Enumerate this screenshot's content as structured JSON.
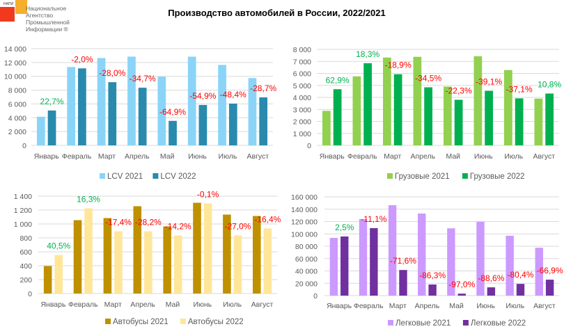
{
  "header": {
    "title": "Производство автомобилей в России, 2022/2021",
    "logo_abbr": "НАПИ",
    "logo_text": "Национальное\nАгентство\nПромышленной\nИнформации ®"
  },
  "colors": {
    "positive": "#00b050",
    "negative": "#ff0000",
    "grid": "#d9d9d9",
    "axis_text": "#595959"
  },
  "chart_data": [
    {
      "type": "bar",
      "title": "",
      "categories": [
        "Январь",
        "Февраль",
        "Март",
        "Апрель",
        "Май",
        "Июнь",
        "Июль",
        "Август"
      ],
      "yticks": [
        "0",
        "2 000",
        "4 000",
        "6 000",
        "8 000",
        "10 000",
        "12 000",
        "14 000"
      ],
      "ylim": [
        0,
        14000
      ],
      "legend_position": "bottom",
      "series": [
        {
          "name": "LCV 2021",
          "color": "#8ad4f8",
          "values": [
            4150,
            11350,
            12650,
            12850,
            9950,
            12850,
            11650,
            9750
          ]
        },
        {
          "name": "LCV 2022",
          "color": "#2a8aae",
          "values": [
            5050,
            11150,
            9150,
            8350,
            3550,
            5850,
            6050,
            6950
          ]
        }
      ],
      "labels": [
        "22,7%",
        "-2,0%",
        "-28,0%",
        "-34,7%",
        "-64,9%",
        "-54,9%",
        "-48,4%",
        "-28,7%"
      ]
    },
    {
      "type": "bar",
      "title": "",
      "categories": [
        "Январь",
        "Февраль",
        "Март",
        "Апрель",
        "Май",
        "Июнь",
        "Июль",
        "Август"
      ],
      "yticks": [
        "0",
        "1 000",
        "2 000",
        "3 000",
        "4 000",
        "5 000",
        "6 000",
        "7 000",
        "8 000"
      ],
      "ylim": [
        0,
        8000
      ],
      "legend_position": "bottom",
      "series": [
        {
          "name": "Грузовые 2021",
          "color": "#92d050",
          "values": [
            2880,
            5750,
            7320,
            7380,
            4900,
            7430,
            6280,
            3900
          ]
        },
        {
          "name": "Грузовые 2022",
          "color": "#00b050",
          "values": [
            4680,
            6850,
            5930,
            4840,
            3800,
            4550,
            3920,
            4320
          ]
        }
      ],
      "labels": [
        "62,9%",
        "18,3%",
        "-18,9%",
        "-34,5%",
        "-22,3%",
        "-39,1%",
        "-37,1%",
        "10,8%"
      ]
    },
    {
      "type": "bar",
      "title": "",
      "categories": [
        "Январь",
        "Февраль",
        "Март",
        "Апрель",
        "Май",
        "Июнь",
        "Июль",
        "Август"
      ],
      "yticks": [
        "0",
        "200",
        "400",
        "600",
        "800",
        "1 000",
        "1 200",
        "1 400"
      ],
      "ylim": [
        0,
        1400
      ],
      "legend_position": "bottom",
      "series": [
        {
          "name": "Автобусы 2021",
          "color": "#bf9000",
          "values": [
            395,
            1055,
            1085,
            1255,
            965,
            1305,
            1135,
            1115
          ]
        },
        {
          "name": "Автобусы 2022",
          "color": "#ffe699",
          "values": [
            555,
            1225,
            895,
            895,
            835,
            1295,
            835,
            935
          ]
        }
      ],
      "labels": [
        "40,5%",
        "16,3%",
        "-17,4%",
        "-28,2%",
        "-14,2%",
        "-0,1%",
        "-27,0%",
        "-16,4%"
      ]
    },
    {
      "type": "bar",
      "title": "",
      "categories": [
        "Январь",
        "Февраль",
        "Март",
        "Апрель",
        "Май",
        "Июнь",
        "Июль",
        "Август"
      ],
      "yticks": [
        "0",
        "20 000",
        "40 000",
        "60 000",
        "80 000",
        "100 000",
        "120 000",
        "140 000",
        "160 000"
      ],
      "ylim": [
        0,
        160000
      ],
      "legend_position": "bottom",
      "series": [
        {
          "name": "Легковые 2021",
          "color": "#cc99ff",
          "values": [
            93500,
            124000,
            146500,
            133000,
            109000,
            119500,
            97000,
            77500
          ]
        },
        {
          "name": "Легковые 2022",
          "color": "#7030a0",
          "values": [
            95800,
            109300,
            41500,
            18000,
            3200,
            13400,
            19000,
            25800
          ]
        }
      ],
      "labels": [
        "2,5%",
        "-11,1%",
        "-71,6%",
        "-86,3%",
        "-97,0%",
        "-88,6%",
        "-80,4%",
        "-66,9%"
      ]
    }
  ]
}
